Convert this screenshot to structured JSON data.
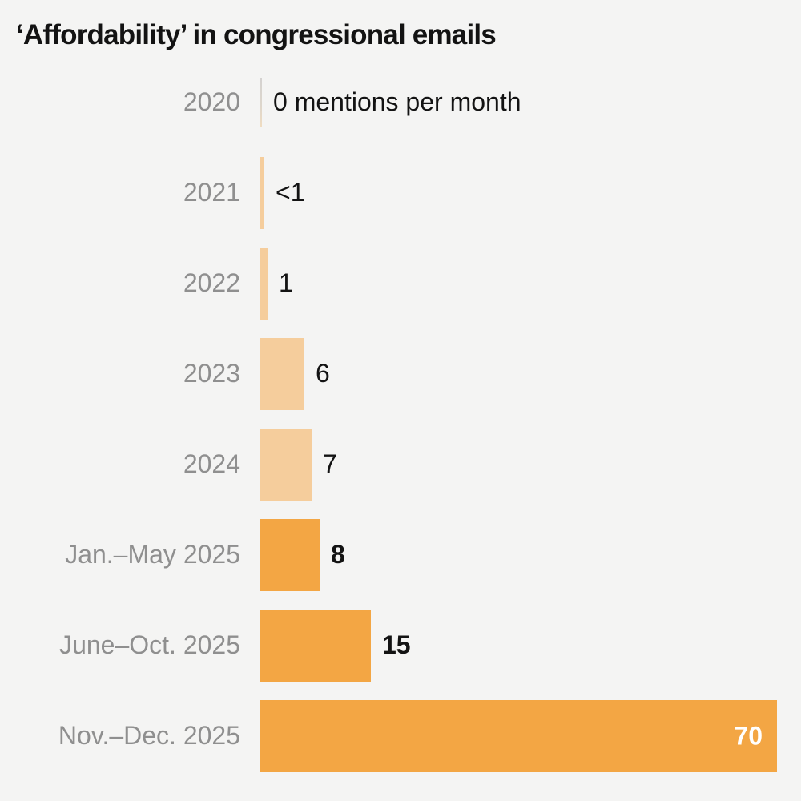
{
  "title": "‘Affordability’ in congressional emails",
  "chart_data": {
    "type": "bar",
    "orientation": "horizontal",
    "title": "‘Affordability’ in congressional emails",
    "xlabel": "",
    "ylabel": "",
    "xlim": [
      0,
      70
    ],
    "grid": false,
    "legend": "none",
    "unit_note": "mentions per month",
    "categories": [
      "2020",
      "2021",
      "2022",
      "2023",
      "2024",
      "Jan.–May 2025",
      "June–Oct. 2025",
      "Nov.–Dec. 2025"
    ],
    "values": [
      0,
      0.5,
      1,
      6,
      7,
      8,
      15,
      70
    ],
    "value_labels": [
      "0 mentions per month",
      "<1",
      "1",
      "6",
      "7",
      "8",
      "15",
      "70"
    ],
    "emphasis": [
      false,
      false,
      false,
      false,
      false,
      true,
      true,
      true
    ],
    "shade": [
      "none",
      "light",
      "light",
      "light",
      "light",
      "dark",
      "dark",
      "dark"
    ],
    "label_inside_bar": [
      false,
      false,
      false,
      false,
      false,
      false,
      false,
      true
    ],
    "colors": {
      "bar_light": "#f5cd9c",
      "bar_dark": "#f3a644",
      "category_label": "#8f8f8f",
      "value_label": "#131313",
      "value_label_inside": "#ffffff",
      "title": "#131313",
      "background": "#f4f4f3"
    }
  }
}
